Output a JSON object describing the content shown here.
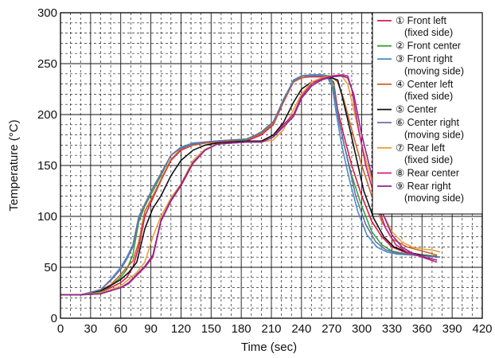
{
  "chart_data": {
    "type": "line",
    "title": "",
    "xlabel": "Time (sec)",
    "ylabel": "Temperature (°C)",
    "xlim": [
      0,
      420
    ],
    "ylim": [
      0,
      300
    ],
    "xticks": [
      0,
      30,
      60,
      90,
      120,
      150,
      180,
      210,
      240,
      270,
      300,
      330,
      360,
      390,
      420
    ],
    "yticks": [
      0,
      50,
      100,
      150,
      200,
      250,
      300
    ],
    "grid": true,
    "legend_position": "top-right",
    "series": [
      {
        "name": [
          "① Front left",
          "(fixed side)"
        ],
        "color": "#d81b4a",
        "x": [
          0,
          20,
          40,
          50,
          60,
          66,
          72,
          78,
          84,
          92,
          100,
          110,
          120,
          132,
          144,
          156,
          170,
          185,
          200,
          212,
          222,
          232,
          240,
          248,
          256,
          262,
          268,
          272,
          276,
          282,
          290,
          300,
          310,
          320,
          330,
          345,
          360,
          375
        ],
        "y": [
          23,
          23,
          26,
          30,
          35,
          40,
          50,
          70,
          100,
          118,
          135,
          155,
          165,
          170,
          172,
          173,
          173,
          174,
          180,
          190,
          212,
          232,
          236,
          237,
          237,
          237,
          236,
          232,
          205,
          180,
          150,
          120,
          95,
          80,
          70,
          64,
          62,
          60
        ]
      },
      {
        "name": [
          "② Front center"
        ],
        "color": "#3aa03a",
        "x": [
          0,
          20,
          40,
          50,
          60,
          66,
          72,
          78,
          84,
          92,
          100,
          110,
          120,
          132,
          144,
          156,
          170,
          185,
          200,
          212,
          222,
          232,
          240,
          250,
          260,
          268,
          272,
          276,
          282,
          290,
          300,
          310,
          320,
          330,
          345,
          360,
          375
        ],
        "y": [
          23,
          23,
          26,
          32,
          40,
          48,
          62,
          95,
          110,
          125,
          140,
          160,
          168,
          172,
          173,
          174,
          175,
          176,
          182,
          192,
          215,
          233,
          238,
          239,
          239,
          238,
          230,
          200,
          172,
          140,
          110,
          85,
          72,
          66,
          63,
          62,
          61
        ]
      },
      {
        "name": [
          "③ Front right",
          "(moving side)"
        ],
        "color": "#4a8ec6",
        "x": [
          0,
          20,
          40,
          50,
          60,
          66,
          72,
          78,
          84,
          92,
          100,
          110,
          120,
          132,
          144,
          156,
          170,
          185,
          200,
          212,
          222,
          232,
          240,
          250,
          260,
          266,
          270,
          274,
          280,
          288,
          296,
          305,
          315,
          325,
          335,
          350,
          365,
          378
        ],
        "y": [
          23,
          23,
          28,
          38,
          50,
          60,
          72,
          100,
          112,
          128,
          142,
          160,
          168,
          172,
          173,
          174,
          175,
          175,
          183,
          193,
          214,
          234,
          238,
          239,
          239,
          238,
          232,
          205,
          170,
          135,
          105,
          82,
          70,
          65,
          63,
          62,
          61,
          60
        ]
      },
      {
        "name": [
          "④ Center left",
          "(fixed side)"
        ],
        "color": "#c86428",
        "x": [
          0,
          20,
          40,
          50,
          60,
          66,
          72,
          78,
          84,
          92,
          100,
          110,
          120,
          132,
          144,
          156,
          170,
          185,
          200,
          212,
          222,
          232,
          240,
          250,
          260,
          270,
          276,
          282,
          290,
          300,
          310,
          320,
          330,
          345,
          360,
          375
        ],
        "y": [
          23,
          23,
          27,
          33,
          43,
          50,
          56,
          75,
          105,
          120,
          136,
          156,
          166,
          170,
          172,
          173,
          174,
          175,
          181,
          191,
          213,
          232,
          236,
          238,
          238,
          237,
          232,
          215,
          185,
          150,
          120,
          95,
          78,
          70,
          66,
          62
        ]
      },
      {
        "name": [
          "⑤ Center"
        ],
        "color": "#111111",
        "x": [
          0,
          20,
          40,
          50,
          60,
          68,
          76,
          84,
          92,
          100,
          110,
          120,
          132,
          144,
          156,
          170,
          185,
          200,
          212,
          222,
          232,
          240,
          250,
          260,
          270,
          276,
          280,
          286,
          294,
          302,
          312,
          322,
          332,
          345,
          360,
          375
        ],
        "y": [
          23,
          23,
          27,
          32,
          38,
          45,
          55,
          88,
          108,
          120,
          140,
          155,
          165,
          170,
          172,
          173,
          174,
          174,
          180,
          192,
          212,
          225,
          232,
          235,
          236,
          234,
          220,
          195,
          160,
          125,
          98,
          80,
          70,
          65,
          62,
          60
        ]
      },
      {
        "name": [
          "⑥ Center right",
          "(moving side)"
        ],
        "color": "#6e6ea6",
        "x": [
          0,
          20,
          40,
          50,
          60,
          66,
          72,
          78,
          84,
          92,
          100,
          110,
          120,
          132,
          144,
          156,
          170,
          185,
          200,
          212,
          222,
          232,
          240,
          250,
          260,
          266,
          272,
          278,
          286,
          294,
          304,
          314,
          324,
          335,
          350,
          365,
          378
        ],
        "y": [
          23,
          23,
          28,
          37,
          48,
          58,
          70,
          98,
          112,
          128,
          142,
          160,
          167,
          171,
          173,
          174,
          175,
          175,
          183,
          193,
          214,
          233,
          238,
          238,
          238,
          236,
          225,
          190,
          155,
          120,
          92,
          75,
          67,
          64,
          62,
          61,
          60
        ]
      },
      {
        "name": [
          "⑦ Rear left",
          "(fixed side)"
        ],
        "color": "#e8a040",
        "x": [
          0,
          20,
          40,
          50,
          60,
          68,
          76,
          84,
          92,
          100,
          110,
          120,
          132,
          144,
          156,
          170,
          185,
          200,
          212,
          222,
          232,
          240,
          250,
          260,
          270,
          280,
          286,
          292,
          300,
          310,
          320,
          330,
          340,
          350,
          360,
          370,
          378
        ],
        "y": [
          23,
          23,
          25,
          28,
          32,
          38,
          45,
          55,
          80,
          100,
          118,
          132,
          155,
          166,
          171,
          172,
          173,
          173,
          175,
          185,
          205,
          220,
          232,
          236,
          238,
          238,
          230,
          205,
          170,
          135,
          105,
          85,
          75,
          70,
          68,
          67,
          65
        ]
      },
      {
        "name": [
          "⑧ Rear center"
        ],
        "color": "#d0207a",
        "x": [
          0,
          20,
          40,
          50,
          60,
          68,
          76,
          84,
          92,
          100,
          110,
          120,
          132,
          144,
          156,
          170,
          185,
          200,
          212,
          222,
          232,
          240,
          250,
          260,
          270,
          280,
          286,
          290,
          296,
          304,
          314,
          324,
          334,
          345,
          360,
          375
        ],
        "y": [
          23,
          23,
          24,
          27,
          30,
          34,
          42,
          50,
          60,
          95,
          115,
          130,
          152,
          165,
          171,
          172,
          173,
          173,
          178,
          190,
          200,
          218,
          230,
          235,
          238,
          239,
          238,
          225,
          190,
          150,
          115,
          88,
          72,
          65,
          60,
          55
        ]
      },
      {
        "name": [
          "⑨ Rear right",
          "(moving side)"
        ],
        "color": "#8a2a8a",
        "x": [
          0,
          20,
          40,
          50,
          60,
          68,
          76,
          84,
          92,
          100,
          110,
          120,
          132,
          144,
          156,
          170,
          185,
          200,
          212,
          222,
          232,
          240,
          250,
          260,
          270,
          280,
          286,
          292,
          300,
          310,
          320,
          330,
          340,
          350,
          362,
          375
        ],
        "y": [
          23,
          23,
          24,
          27,
          30,
          35,
          43,
          51,
          62,
          96,
          116,
          131,
          153,
          165,
          171,
          172,
          173,
          173,
          178,
          188,
          198,
          216,
          228,
          234,
          237,
          238,
          236,
          220,
          180,
          140,
          105,
          82,
          70,
          64,
          60,
          57
        ]
      }
    ]
  }
}
